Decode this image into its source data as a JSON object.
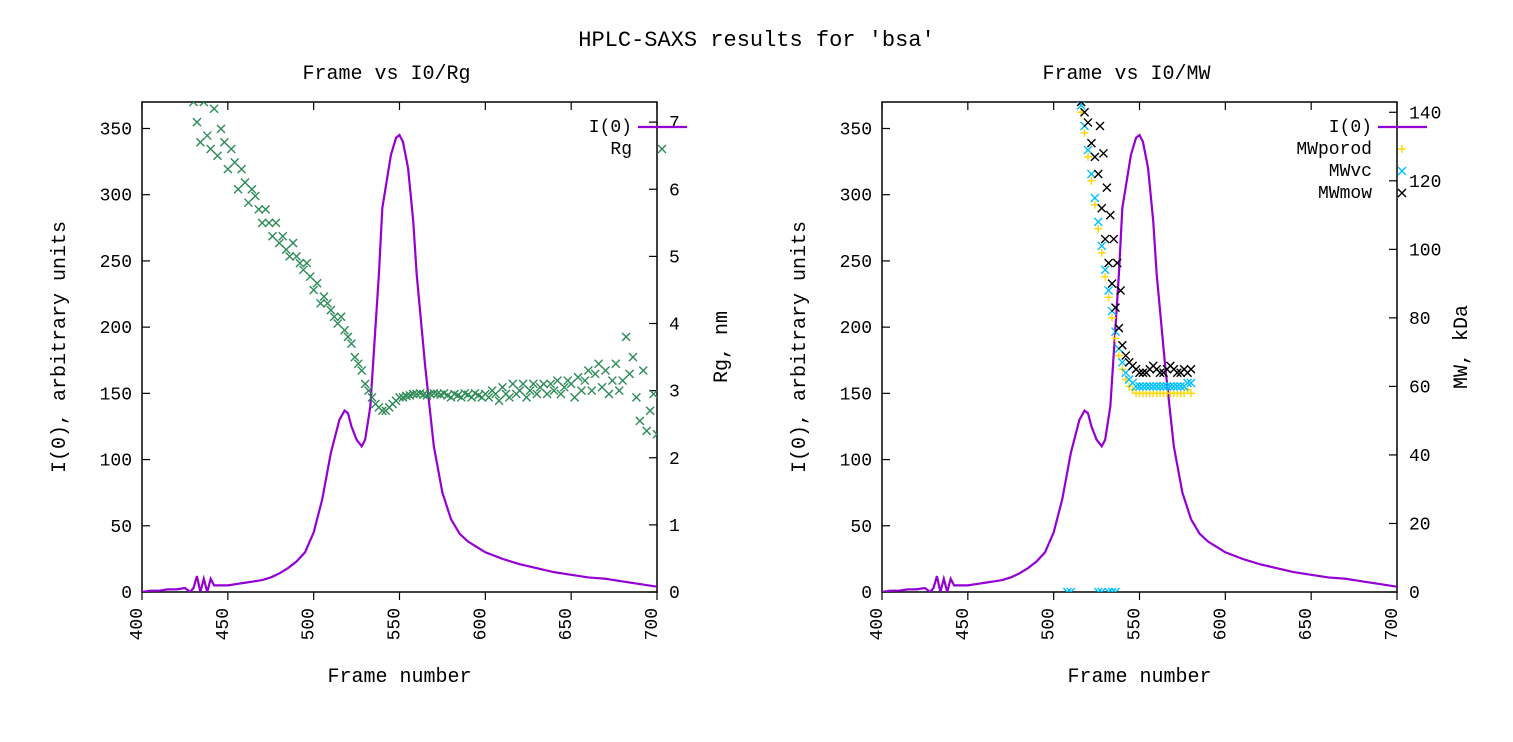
{
  "main_title": "HPLC-SAXS results for 'bsa'",
  "colors": {
    "i0_line": "#9400d3",
    "rg_marker": "#2e8b57",
    "mwporod_marker": "#ffd700",
    "mwvc_marker": "#00bfff",
    "mwmow_marker": "#000000",
    "axis": "#000000",
    "bg": "#ffffff"
  },
  "font": {
    "axis_label_size": 20,
    "tick_label_size": 18,
    "title_size": 22,
    "legend_size": 18,
    "family": "Courier New"
  },
  "left_chart": {
    "subtitle": "Frame vs I0/Rg",
    "x_label": "Frame number",
    "y1_label": "I(0), arbitrary units",
    "y2_label": "Rg, nm",
    "x_lim": [
      400,
      700
    ],
    "x_ticks": [
      400,
      450,
      500,
      550,
      600,
      650,
      700
    ],
    "y1_lim": [
      0,
      370
    ],
    "y1_ticks": [
      0,
      50,
      100,
      150,
      200,
      250,
      300,
      350
    ],
    "y2_lim": [
      0,
      7.3
    ],
    "y2_ticks": [
      0,
      1,
      2,
      3,
      4,
      5,
      6,
      7
    ],
    "line_width": 2.2,
    "marker_size": 8,
    "marker_stroke": 1.4,
    "legend": [
      {
        "label": "I(0)",
        "type": "line",
        "color_key": "i0_line"
      },
      {
        "label": "Rg",
        "type": "x",
        "color_key": "rg_marker"
      }
    ],
    "i0_series": [
      [
        400,
        0
      ],
      [
        405,
        1
      ],
      [
        410,
        1
      ],
      [
        415,
        2
      ],
      [
        420,
        2
      ],
      [
        425,
        3
      ],
      [
        428,
        0
      ],
      [
        430,
        3
      ],
      [
        432,
        12
      ],
      [
        434,
        0
      ],
      [
        436,
        10
      ],
      [
        438,
        0
      ],
      [
        440,
        10
      ],
      [
        442,
        5
      ],
      [
        445,
        5
      ],
      [
        450,
        5
      ],
      [
        455,
        6
      ],
      [
        460,
        7
      ],
      [
        465,
        8
      ],
      [
        470,
        9
      ],
      [
        475,
        11
      ],
      [
        480,
        14
      ],
      [
        485,
        18
      ],
      [
        490,
        23
      ],
      [
        495,
        30
      ],
      [
        500,
        45
      ],
      [
        505,
        70
      ],
      [
        510,
        105
      ],
      [
        515,
        130
      ],
      [
        518,
        137
      ],
      [
        520,
        135
      ],
      [
        522,
        125
      ],
      [
        525,
        115
      ],
      [
        528,
        110
      ],
      [
        530,
        115
      ],
      [
        533,
        140
      ],
      [
        535,
        180
      ],
      [
        538,
        240
      ],
      [
        540,
        290
      ],
      [
        545,
        330
      ],
      [
        548,
        343
      ],
      [
        550,
        345
      ],
      [
        552,
        340
      ],
      [
        555,
        320
      ],
      [
        558,
        280
      ],
      [
        560,
        240
      ],
      [
        565,
        170
      ],
      [
        570,
        110
      ],
      [
        575,
        75
      ],
      [
        580,
        55
      ],
      [
        585,
        44
      ],
      [
        590,
        38
      ],
      [
        595,
        34
      ],
      [
        600,
        30
      ],
      [
        610,
        25
      ],
      [
        620,
        21
      ],
      [
        630,
        18
      ],
      [
        640,
        15
      ],
      [
        650,
        13
      ],
      [
        660,
        11
      ],
      [
        670,
        10
      ],
      [
        680,
        8
      ],
      [
        690,
        6
      ],
      [
        700,
        4
      ]
    ],
    "rg_series": [
      [
        430,
        7.3
      ],
      [
        432,
        7.0
      ],
      [
        434,
        6.7
      ],
      [
        436,
        7.3
      ],
      [
        438,
        6.8
      ],
      [
        440,
        6.6
      ],
      [
        442,
        7.2
      ],
      [
        444,
        6.5
      ],
      [
        446,
        6.9
      ],
      [
        448,
        6.7
      ],
      [
        450,
        6.3
      ],
      [
        452,
        6.6
      ],
      [
        454,
        6.4
      ],
      [
        456,
        6.0
      ],
      [
        458,
        6.3
      ],
      [
        460,
        6.1
      ],
      [
        462,
        5.8
      ],
      [
        464,
        6.0
      ],
      [
        466,
        5.9
      ],
      [
        468,
        5.7
      ],
      [
        470,
        5.5
      ],
      [
        472,
        5.7
      ],
      [
        474,
        5.5
      ],
      [
        476,
        5.3
      ],
      [
        478,
        5.5
      ],
      [
        480,
        5.2
      ],
      [
        482,
        5.3
      ],
      [
        484,
        5.1
      ],
      [
        486,
        5.0
      ],
      [
        488,
        5.2
      ],
      [
        490,
        5.0
      ],
      [
        492,
        4.9
      ],
      [
        494,
        4.8
      ],
      [
        496,
        4.9
      ],
      [
        498,
        4.7
      ],
      [
        500,
        4.5
      ],
      [
        502,
        4.6
      ],
      [
        504,
        4.3
      ],
      [
        506,
        4.4
      ],
      [
        508,
        4.3
      ],
      [
        510,
        4.2
      ],
      [
        512,
        4.1
      ],
      [
        514,
        4.0
      ],
      [
        516,
        4.1
      ],
      [
        518,
        3.9
      ],
      [
        520,
        3.8
      ],
      [
        522,
        3.7
      ],
      [
        524,
        3.5
      ],
      [
        526,
        3.4
      ],
      [
        528,
        3.3
      ],
      [
        530,
        3.1
      ],
      [
        532,
        3.0
      ],
      [
        534,
        2.9
      ],
      [
        536,
        2.8
      ],
      [
        538,
        2.75
      ],
      [
        540,
        2.7
      ],
      [
        542,
        2.7
      ],
      [
        544,
        2.75
      ],
      [
        546,
        2.8
      ],
      [
        548,
        2.85
      ],
      [
        550,
        2.9
      ],
      [
        552,
        2.9
      ],
      [
        554,
        2.92
      ],
      [
        556,
        2.93
      ],
      [
        558,
        2.95
      ],
      [
        560,
        2.95
      ],
      [
        562,
        2.96
      ],
      [
        564,
        2.94
      ],
      [
        566,
        2.93
      ],
      [
        568,
        2.95
      ],
      [
        570,
        2.96
      ],
      [
        572,
        2.95
      ],
      [
        574,
        2.94
      ],
      [
        576,
        2.96
      ],
      [
        578,
        2.93
      ],
      [
        580,
        2.9
      ],
      [
        582,
        2.95
      ],
      [
        584,
        2.93
      ],
      [
        586,
        2.9
      ],
      [
        588,
        2.96
      ],
      [
        590,
        2.94
      ],
      [
        592,
        2.9
      ],
      [
        594,
        2.96
      ],
      [
        596,
        2.93
      ],
      [
        598,
        2.9
      ],
      [
        600,
        2.95
      ],
      [
        602,
        2.9
      ],
      [
        604,
        3.0
      ],
      [
        606,
        2.95
      ],
      [
        608,
        2.85
      ],
      [
        610,
        3.05
      ],
      [
        612,
        2.95
      ],
      [
        614,
        2.9
      ],
      [
        616,
        3.1
      ],
      [
        618,
        2.95
      ],
      [
        620,
        3.0
      ],
      [
        622,
        3.1
      ],
      [
        624,
        2.9
      ],
      [
        626,
        3.0
      ],
      [
        628,
        3.1
      ],
      [
        630,
        2.95
      ],
      [
        632,
        3.05
      ],
      [
        634,
        3.1
      ],
      [
        636,
        2.95
      ],
      [
        638,
        3.1
      ],
      [
        640,
        3.0
      ],
      [
        642,
        3.15
      ],
      [
        644,
        2.95
      ],
      [
        646,
        3.05
      ],
      [
        648,
        3.15
      ],
      [
        650,
        3.1
      ],
      [
        652,
        2.9
      ],
      [
        654,
        3.2
      ],
      [
        656,
        3.0
      ],
      [
        658,
        3.15
      ],
      [
        660,
        3.3
      ],
      [
        662,
        3.0
      ],
      [
        664,
        3.25
      ],
      [
        666,
        3.4
      ],
      [
        668,
        3.05
      ],
      [
        670,
        3.3
      ],
      [
        672,
        2.95
      ],
      [
        674,
        3.15
      ],
      [
        676,
        3.4
      ],
      [
        678,
        3.0
      ],
      [
        680,
        3.15
      ],
      [
        682,
        3.8
      ],
      [
        684,
        3.25
      ],
      [
        686,
        3.5
      ],
      [
        688,
        2.9
      ],
      [
        690,
        2.55
      ],
      [
        692,
        3.3
      ],
      [
        694,
        2.4
      ],
      [
        696,
        2.7
      ],
      [
        698,
        2.95
      ],
      [
        700,
        2.35
      ]
    ]
  },
  "right_chart": {
    "subtitle": "Frame vs I0/MW",
    "x_label": "Frame number",
    "y1_label": "I(0), arbitrary units",
    "y2_label": "MW, kDa",
    "x_lim": [
      400,
      700
    ],
    "x_ticks": [
      400,
      450,
      500,
      550,
      600,
      650,
      700
    ],
    "y1_lim": [
      0,
      370
    ],
    "y1_ticks": [
      0,
      50,
      100,
      150,
      200,
      250,
      300,
      350
    ],
    "y2_lim": [
      0,
      143
    ],
    "y2_ticks": [
      0,
      20,
      40,
      60,
      80,
      100,
      120,
      140
    ],
    "line_width": 2.2,
    "marker_size": 8,
    "marker_stroke": 1.4,
    "legend": [
      {
        "label": "I(0)",
        "type": "line",
        "color_key": "i0_line"
      },
      {
        "label": "MWporod",
        "type": "plus",
        "color_key": "mwporod_marker"
      },
      {
        "label": "MWvc",
        "type": "x",
        "color_key": "mwvc_marker"
      },
      {
        "label": "MWmow",
        "type": "x",
        "color_key": "mwmow_marker"
      }
    ],
    "mwporod_series": [
      [
        516,
        140
      ],
      [
        518,
        134
      ],
      [
        520,
        127
      ],
      [
        522,
        120
      ],
      [
        524,
        113
      ],
      [
        526,
        106
      ],
      [
        528,
        99
      ],
      [
        530,
        92
      ],
      [
        532,
        86
      ],
      [
        534,
        80
      ],
      [
        536,
        74
      ],
      [
        538,
        69
      ],
      [
        540,
        65
      ],
      [
        542,
        62
      ],
      [
        544,
        60
      ],
      [
        546,
        59
      ],
      [
        548,
        58
      ],
      [
        550,
        58
      ],
      [
        552,
        58
      ],
      [
        554,
        58
      ],
      [
        556,
        58
      ],
      [
        558,
        58
      ],
      [
        560,
        58
      ],
      [
        562,
        58
      ],
      [
        564,
        58
      ],
      [
        566,
        58
      ],
      [
        568,
        58
      ],
      [
        570,
        58
      ],
      [
        572,
        58
      ],
      [
        574,
        58
      ],
      [
        576,
        58
      ],
      [
        578,
        59
      ],
      [
        580,
        58
      ]
    ],
    "mwvc_series": [
      [
        516,
        142
      ],
      [
        518,
        136
      ],
      [
        520,
        129
      ],
      [
        522,
        122
      ],
      [
        524,
        115
      ],
      [
        526,
        108
      ],
      [
        528,
        101
      ],
      [
        530,
        94
      ],
      [
        532,
        88
      ],
      [
        534,
        82
      ],
      [
        536,
        76
      ],
      [
        538,
        71
      ],
      [
        540,
        67
      ],
      [
        542,
        64
      ],
      [
        544,
        62
      ],
      [
        546,
        61
      ],
      [
        548,
        60
      ],
      [
        550,
        60
      ],
      [
        552,
        60
      ],
      [
        554,
        60
      ],
      [
        556,
        60
      ],
      [
        558,
        60
      ],
      [
        560,
        60
      ],
      [
        562,
        60
      ],
      [
        564,
        60
      ],
      [
        566,
        60
      ],
      [
        568,
        60
      ],
      [
        570,
        60
      ],
      [
        572,
        60
      ],
      [
        574,
        60
      ],
      [
        576,
        60
      ],
      [
        578,
        61
      ],
      [
        580,
        61
      ],
      [
        508,
        0
      ],
      [
        510,
        0
      ],
      [
        526,
        0
      ],
      [
        528,
        0
      ],
      [
        532,
        0
      ],
      [
        534,
        0
      ],
      [
        536,
        0
      ]
    ],
    "mwmow_series": [
      [
        516,
        143
      ],
      [
        518,
        140
      ],
      [
        520,
        137
      ],
      [
        522,
        131
      ],
      [
        524,
        127
      ],
      [
        526,
        122
      ],
      [
        527,
        136
      ],
      [
        528,
        112
      ],
      [
        529,
        128
      ],
      [
        530,
        103
      ],
      [
        531,
        118
      ],
      [
        532,
        96
      ],
      [
        533,
        110
      ],
      [
        534,
        90
      ],
      [
        535,
        103
      ],
      [
        536,
        83
      ],
      [
        537,
        96
      ],
      [
        538,
        77
      ],
      [
        539,
        88
      ],
      [
        540,
        72
      ],
      [
        542,
        69
      ],
      [
        544,
        67
      ],
      [
        546,
        66
      ],
      [
        548,
        65
      ],
      [
        550,
        64
      ],
      [
        552,
        64
      ],
      [
        554,
        64
      ],
      [
        556,
        65
      ],
      [
        558,
        66
      ],
      [
        560,
        65
      ],
      [
        562,
        64
      ],
      [
        564,
        64
      ],
      [
        566,
        65
      ],
      [
        568,
        66
      ],
      [
        570,
        65
      ],
      [
        572,
        64
      ],
      [
        574,
        64
      ],
      [
        576,
        65
      ],
      [
        578,
        64
      ],
      [
        580,
        65
      ]
    ]
  }
}
